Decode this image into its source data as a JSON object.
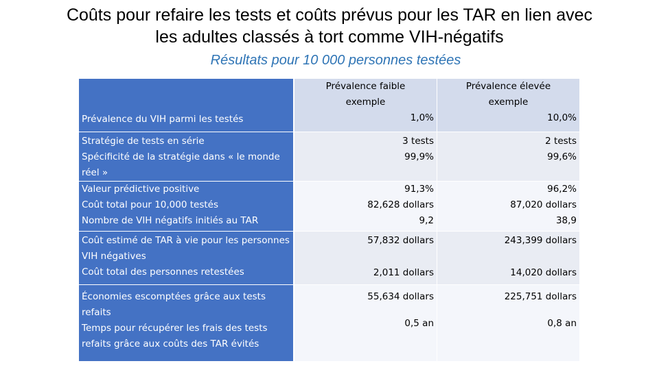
{
  "title_line1": "Coûts pour refaire les tests et coûts prévus pour les TAR en lien avec",
  "title_line2": "les adultes classés à tort comme VIH-négatifs",
  "subtitle": "Résultats pour 10 000 personnes testées",
  "header": {
    "label": "Prévalence du VIH parmi les testés",
    "low_caption_1": "Prévalence faible",
    "low_caption_2": "exemple",
    "low_value": "1,0%",
    "high_caption_1": "Prévalence élevée",
    "high_caption_2": "exemple",
    "high_value": "10,0%"
  },
  "rows": [
    {
      "labels": [
        "Stratégie de tests en série",
        "Spécificité de la stratégie dans « le monde réel »"
      ],
      "low": [
        "3 tests",
        "99,9%"
      ],
      "high": [
        "2 tests",
        "99,6%"
      ]
    },
    {
      "labels": [
        "Valeur prédictive positive",
        "Coût total pour 10,000 testés",
        "Nombre de VIH négatifs initiés au TAR"
      ],
      "low": [
        "91,3%",
        "82,628 dollars",
        "9,2"
      ],
      "high": [
        "96,2%",
        "87,020 dollars",
        "38,9"
      ]
    },
    {
      "labels": [
        "Coût estimé de TAR à vie pour les personnes VIH négatives",
        "Coût total des personnes retestées"
      ],
      "low": [
        "57,832 dollars",
        "2,011 dollars"
      ],
      "high": [
        "243,399 dollars",
        "14,020 dollars"
      ]
    },
    {
      "labels": [
        "Économies escomptées grâce aux tests refaits",
        "Temps pour récupérer les frais des tests refaits grâce aux coûts des TAR évités"
      ],
      "low": [
        "55,634 dollars",
        "0,5 an"
      ],
      "high": [
        "225,751 dollars",
        "0,8 an"
      ]
    }
  ]
}
